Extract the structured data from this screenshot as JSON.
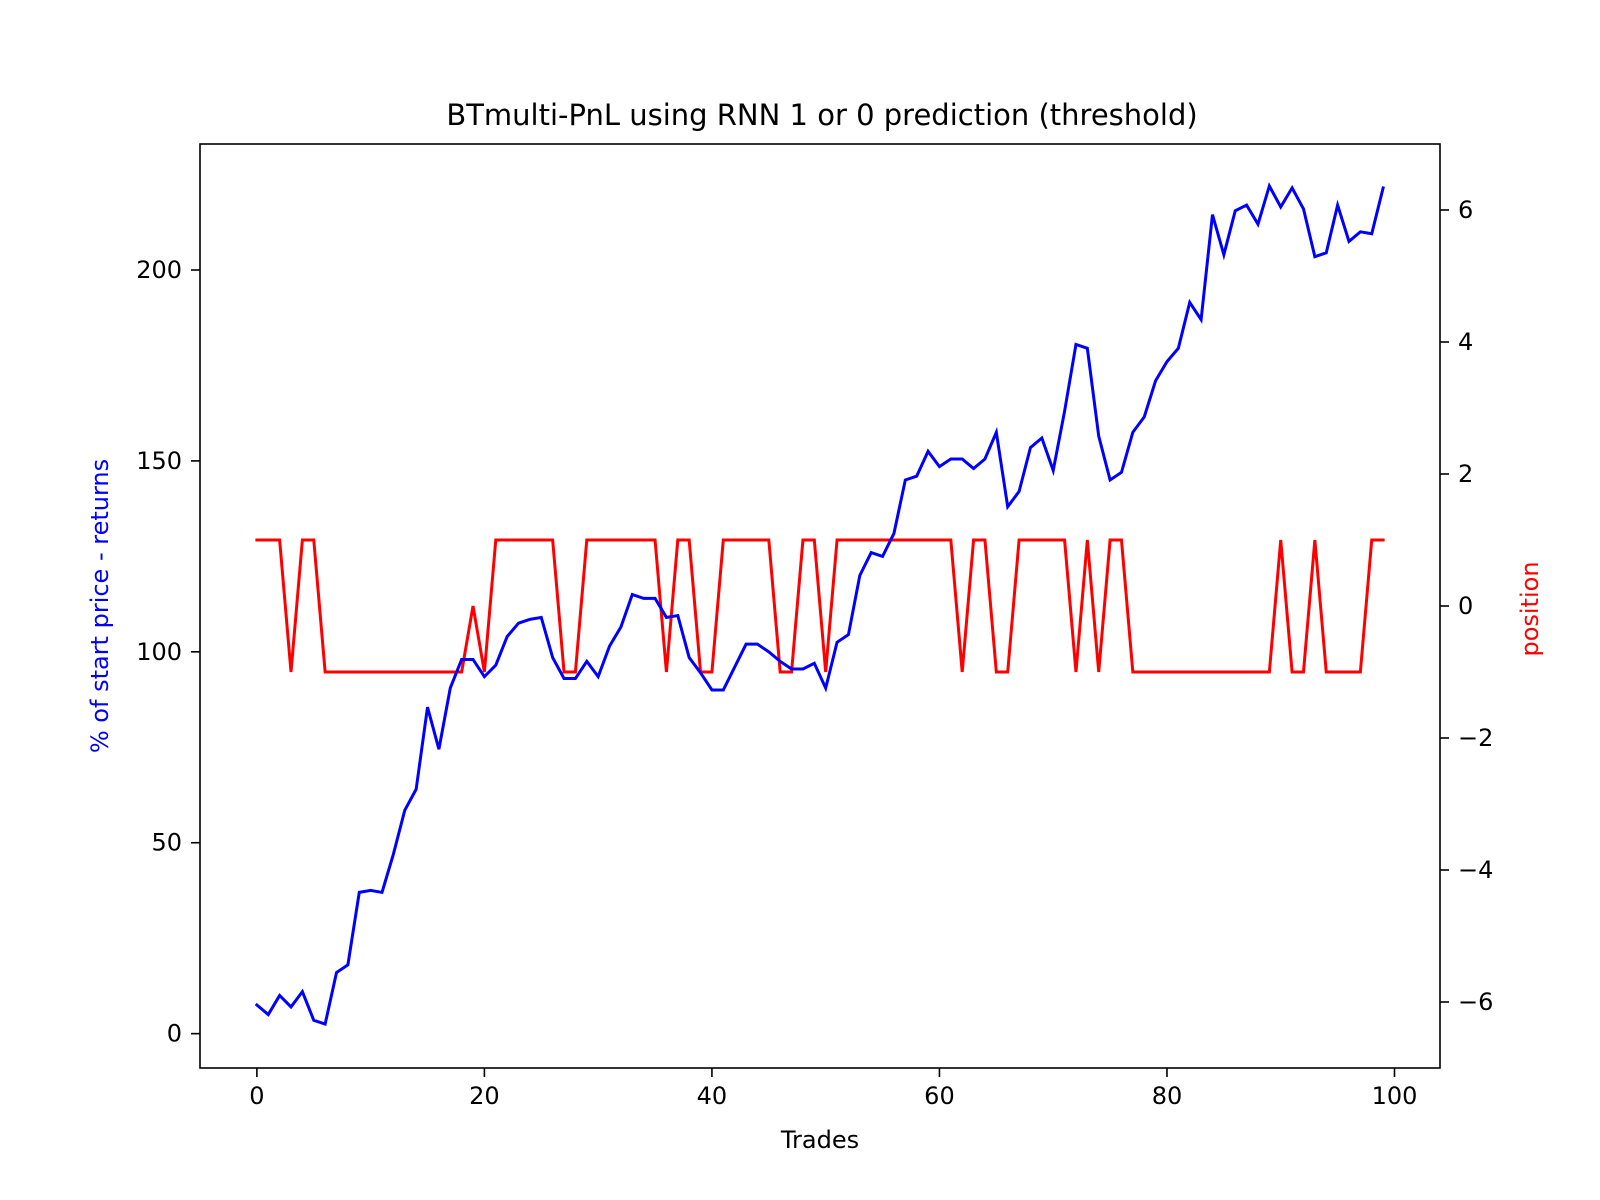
{
  "chart_data": {
    "type": "line",
    "title": "BTmulti-PnL using RNN 1 or 0 prediction (threshold)",
    "xlabel": "Trades",
    "ylabel": "% of start price - returns",
    "y2label": "position",
    "xlim": [
      -5,
      104
    ],
    "ylim": [
      -9,
      233
    ],
    "y2lim": [
      -7,
      7
    ],
    "xticks": [
      0,
      20,
      40,
      60,
      80,
      100
    ],
    "yticks": [
      0,
      50,
      100,
      150,
      200
    ],
    "y2ticks": [
      -6,
      -4,
      -2,
      0,
      2,
      4,
      6
    ],
    "grid": false,
    "x": [
      0,
      1,
      2,
      3,
      4,
      5,
      6,
      7,
      8,
      9,
      10,
      11,
      12,
      13,
      14,
      15,
      16,
      17,
      18,
      19,
      20,
      21,
      22,
      23,
      24,
      25,
      26,
      27,
      28,
      29,
      30,
      31,
      32,
      33,
      34,
      35,
      36,
      37,
      38,
      39,
      40,
      41,
      42,
      43,
      44,
      45,
      46,
      47,
      48,
      49,
      50,
      51,
      52,
      53,
      54,
      55,
      56,
      57,
      58,
      59,
      60,
      61,
      62,
      63,
      64,
      65,
      66,
      67,
      68,
      69,
      70,
      71,
      72,
      73,
      74,
      75,
      76,
      77,
      78,
      79,
      80,
      81,
      82,
      83,
      84,
      85,
      86,
      87,
      88,
      89,
      90,
      91,
      92,
      93,
      94,
      95,
      96,
      97,
      98,
      99
    ],
    "series": [
      {
        "color": "#0000ff",
        "axis": "left",
        "values": [
          7.5,
          5,
          10,
          7,
          11,
          3.5,
          2.5,
          16,
          18,
          37,
          37.5,
          37,
          47,
          58.5,
          64,
          85.5,
          74.5,
          90.5,
          98,
          98,
          93.5,
          96.5,
          104,
          107.5,
          108.5,
          109,
          98.5,
          93,
          93,
          97.5,
          93.5,
          101.5,
          106.5,
          115,
          114,
          114,
          109,
          109.5,
          98.5,
          94.5,
          90,
          90,
          96,
          102,
          102,
          100,
          97.5,
          95.5,
          95.5,
          97,
          90.5,
          102.5,
          104.5,
          120,
          126,
          125,
          131,
          145,
          146,
          152.5,
          148.5,
          150.5,
          150.5,
          148,
          150.5,
          157.5,
          138,
          142,
          153.5,
          156,
          147.5,
          163,
          180.5,
          179.5,
          156.5,
          145,
          147,
          157.5,
          161.5,
          171,
          176,
          179.5,
          191.5,
          187,
          214.5,
          204,
          215.5,
          217,
          212,
          222,
          216.5,
          221.5,
          216,
          203.5,
          204.5,
          217,
          207.5,
          210,
          209.5,
          221.5
        ]
      },
      {
        "color": "#ff0000",
        "axis": "right",
        "values": [
          1,
          1,
          1,
          -1,
          1,
          1,
          -1,
          -1,
          -1,
          -1,
          -1,
          -1,
          -1,
          -1,
          -1,
          -1,
          -1,
          -1,
          -1,
          0,
          -1,
          1,
          1,
          1,
          1,
          1,
          1,
          -1,
          -1,
          1,
          1,
          1,
          1,
          1,
          1,
          1,
          -1,
          1,
          1,
          -1,
          -1,
          1,
          1,
          1,
          1,
          1,
          -1,
          -1,
          1,
          1,
          -1,
          1,
          1,
          1,
          1,
          1,
          1,
          1,
          1,
          1,
          1,
          1,
          -1,
          1,
          1,
          -1,
          -1,
          1,
          1,
          1,
          1,
          1,
          -1,
          1,
          -1,
          1,
          1,
          -1,
          -1,
          -1,
          -1,
          -1,
          -1,
          -1,
          -1,
          -1,
          -1,
          -1,
          -1,
          -1,
          1,
          -1,
          -1,
          1,
          -1,
          -1,
          -1,
          -1,
          1,
          1
        ]
      }
    ]
  }
}
